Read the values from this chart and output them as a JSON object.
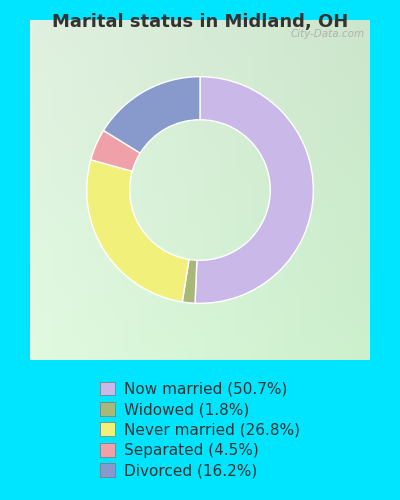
{
  "title": "Marital status in Midland, OH",
  "slices": [
    50.7,
    1.8,
    26.8,
    4.5,
    16.2
  ],
  "labels": [
    "Now married (50.7%)",
    "Widowed (1.8%)",
    "Never married (26.8%)",
    "Separated (4.5%)",
    "Divorced (16.2%)"
  ],
  "colors": [
    "#c9b8e8",
    "#a8b87a",
    "#f0f07a",
    "#f0a0a8",
    "#8899cc"
  ],
  "bg_color": "#00e5ff",
  "chart_bg_tl": "#e8f0e8",
  "chart_bg_br": "#c8e0d0",
  "title_color": "#333333",
  "title_fontsize": 13,
  "legend_fontsize": 11,
  "watermark": "City-Data.com",
  "start_angle": 90,
  "donut_width": 0.38
}
